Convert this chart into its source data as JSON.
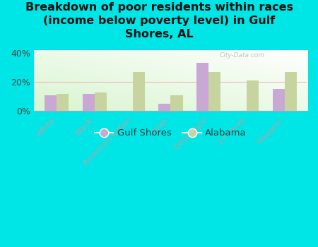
{
  "title": "Breakdown of poor residents within races\n(income below poverty level) in Gulf\nShores, AL",
  "categories": [
    "White",
    "Black",
    "American Indian",
    "Asian",
    "Other race",
    "2+ races",
    "Hispanic"
  ],
  "gulf_shores": [
    11,
    12,
    0,
    5,
    33,
    0,
    15
  ],
  "alabama": [
    12,
    13,
    27,
    11,
    27,
    21,
    27
  ],
  "gulf_shores_color": "#c9a8d4",
  "alabama_color": "#c8d4a0",
  "background_color": "#00e5e5",
  "ylim_max": 42,
  "yticks": [
    0,
    20,
    40
  ],
  "ytick_labels": [
    "0%",
    "20%",
    "40%"
  ],
  "grid_color": "#f0b8b8",
  "watermark": "City-Data.com",
  "legend_gulf": "Gulf Shores",
  "legend_alabama": "Alabama",
  "title_fontsize": 11.5,
  "bar_width": 0.32
}
